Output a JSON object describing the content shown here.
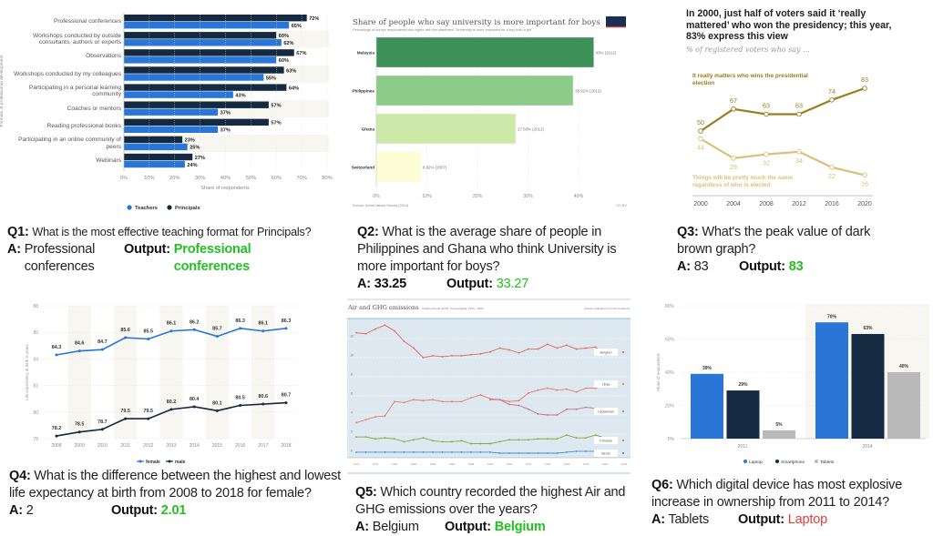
{
  "colors": {
    "statista_blue": "#2a75d8",
    "statista_dark": "#132a40",
    "grey_bar": "#b9b9b9",
    "band": "#f7f6f0",
    "owid_greens": [
      "#3f915a",
      "#8ccc8a",
      "#cde8a8",
      "#fdfdd6"
    ],
    "pew_dark": "#9c7d1e",
    "pew_light": "#dcc07a",
    "correct": "#22c022",
    "wrong": "#e23b3b"
  },
  "chart_data": [
    {
      "type": "bar",
      "orientation": "horizontal",
      "categories": [
        "Professional conferences",
        "Workshops conducted by outside consultants, authors or experts",
        "Observations",
        "Workshops conducted by my colleagues",
        "Participating in a personal learning community",
        "Coaches or mentors",
        "Reading professional books",
        "Participating in an online community of peers",
        "Webinars"
      ],
      "series": [
        {
          "name": "Principals",
          "values": [
            72,
            60,
            67,
            63,
            64,
            57,
            57,
            23,
            27
          ],
          "labels": [
            "72%",
            "60%",
            "67%",
            "63%",
            "64%",
            "57%",
            "57%",
            "23%",
            "27%"
          ]
        },
        {
          "name": "Teachers",
          "values": [
            65,
            62,
            60,
            55,
            43,
            37,
            37,
            25,
            24
          ],
          "labels": [
            "65%",
            "62%",
            "60%",
            "55%",
            "43%",
            "37%",
            "37%",
            "25%",
            "24%"
          ]
        }
      ],
      "xlabel": "Share of respondents",
      "ylabel": "Formats of professional development",
      "xlim": [
        0,
        80
      ],
      "xticks": [
        "0%",
        "10%",
        "20%",
        "30%",
        "40%",
        "50%",
        "60%",
        "70%",
        "80%"
      ],
      "legend": [
        "Teachers",
        "Principals"
      ],
      "legend_placement": "bottom"
    },
    {
      "type": "bar",
      "orientation": "horizontal",
      "title": "Share of people who say university is more important for boys",
      "subtitle": "Percentage of survey respondents who agree with the statement \"University is more important for a boy than a girl\"",
      "categories": [
        "Malaysia",
        "Philippines",
        "Ghana",
        "Switzerland"
      ],
      "values": [
        43,
        38.92,
        27.58,
        8.82
      ],
      "labels": [
        "43% (2012)",
        "38.92% (2012)",
        "27.58% (2012)",
        "8.82% (2007)"
      ],
      "xlim": [
        0,
        43
      ],
      "xticks": [
        "0%",
        "10%",
        "20%",
        "30%",
        "40%"
      ],
      "source": "Source: World Values Survey (2014)",
      "license": "CC BY",
      "logo": "Our World in Data",
      "grid": true
    },
    {
      "type": "line",
      "title": "In 2000, just half of voters said it ‘really mattered’ who won the presidency; this year, 83% express this view",
      "subtitle": "% of registered voters who say ...",
      "x": [
        "2000",
        "2004",
        "2008",
        "2012",
        "2016",
        "2020"
      ],
      "series": [
        {
          "name": "It really matters who wins the presidential election",
          "values": [
            50,
            67,
            63,
            63,
            74,
            83
          ]
        },
        {
          "name": "Things will be pretty much the same regardless of who is elected",
          "values": [
            44,
            29,
            32,
            34,
            22,
            16
          ]
        }
      ]
    },
    {
      "type": "line",
      "x": [
        "2008",
        "2009",
        "2010",
        "2011",
        "2012",
        "2013",
        "2014",
        "2015",
        "2016",
        "2017",
        "2018"
      ],
      "series": [
        {
          "name": "female",
          "values": [
            84.3,
            84.6,
            84.7,
            85.6,
            85.5,
            86.1,
            86.2,
            85.7,
            86.3,
            86.1,
            86.3
          ]
        },
        {
          "name": "male",
          "values": [
            78.2,
            78.5,
            78.7,
            79.5,
            79.5,
            80.2,
            80.4,
            80.1,
            80.5,
            80.6,
            80.7
          ]
        }
      ],
      "ylabel": "Life expectancy at birth in years",
      "ylim": [
        78,
        88
      ],
      "yticks": [
        "78",
        "80",
        "82",
        "84",
        "86",
        "88"
      ],
      "legend_placement": "bottom"
    },
    {
      "type": "line",
      "title": "Air and GHG emissions",
      "subtitle": "Carbon dioxide (CO2), Tonnes/capita, 1976 – 2004",
      "source": "Source: Indicators for CO2 emissions",
      "xticks": [
        "1976",
        "1978",
        "1980",
        "1982",
        "1984",
        "1986",
        "1988",
        "1990",
        "1992",
        "1994",
        "1996",
        "1998",
        "2000",
        "2002",
        "2004"
      ],
      "yticks": [
        "0",
        "2",
        "4",
        "6",
        "8",
        "10",
        "12"
      ],
      "ylim": [
        0,
        13.5
      ],
      "series": [
        {
          "name": "Belgium",
          "start": 1976,
          "values": [
            12.6,
            12.5,
            13.0,
            13.4,
            12.8,
            11.7,
            11.0,
            10.0,
            10.2,
            10.1,
            10.2,
            10.2,
            10.3,
            10.4,
            10.6,
            11.0,
            10.8,
            10.5,
            10.9,
            10.9,
            11.4,
            11.0,
            11.3,
            10.9,
            11.0,
            11.1,
            10.5
          ],
          "color": "#e8665a"
        },
        {
          "name": "Libya",
          "start": 1976,
          "values": [
            3.2,
            3.5,
            3.8,
            3.9,
            5.4,
            5.3,
            5.6,
            5.5,
            5.6,
            5.4,
            5.4,
            5.4,
            5.8,
            6.1,
            5.7,
            5.6,
            5.4,
            5.5,
            6.3,
            6.6,
            6.8,
            6.6,
            6.7,
            6.4,
            6.8,
            6.8,
            7.1
          ],
          "color": "#e77a62"
        },
        {
          "name": "Uzbekistan",
          "start": 1990,
          "values": [
            5.6,
            5.6,
            5.1,
            5.0,
            4.6,
            4.1,
            4.0,
            4.0,
            4.6,
            4.6,
            4.8,
            4.7
          ],
          "color": "#c9708c"
        },
        {
          "name": "Panama",
          "start": 1976,
          "values": [
            1.7,
            1.7,
            1.5,
            1.6,
            1.5,
            1.2,
            1.4,
            1.6,
            1.3,
            1.2,
            1.2,
            1.3,
            1.0,
            1.0,
            1.0,
            1.2,
            1.4,
            1.4,
            1.4,
            1.5,
            1.5,
            1.5,
            1.9,
            1.6,
            1.6,
            1.9,
            1.6
          ],
          "color": "#8aa83a"
        },
        {
          "name": "Benin",
          "start": 1976,
          "values": [
            0.1,
            0.1,
            0.1,
            0.1,
            0.1,
            0.1,
            0.1,
            0.1,
            0.1,
            0.1,
            0.1,
            0.1,
            0.1,
            0.1,
            0.1,
            0.0,
            0.0,
            0.0,
            0.0,
            0.0,
            0.0,
            0.0,
            0.1,
            0.2,
            0.2,
            0.2,
            0.3
          ],
          "color": "#3a8ee0"
        }
      ],
      "grid": true
    },
    {
      "type": "bar",
      "categories": [
        "2011",
        "2014"
      ],
      "series": [
        {
          "name": "Laptop",
          "values": [
            39,
            70
          ],
          "labels": [
            "39%",
            "70%"
          ]
        },
        {
          "name": "Smartphone",
          "values": [
            29,
            63
          ],
          "labels": [
            "29%",
            "63%"
          ]
        },
        {
          "name": "Tablets",
          "values": [
            5,
            40
          ],
          "labels": [
            "5%",
            "40%"
          ]
        }
      ],
      "ylabel": "Share of respondents",
      "ylim": [
        0,
        80
      ],
      "yticks": [
        "0%",
        "20%",
        "40%",
        "60%",
        "80%"
      ],
      "legend_placement": "bottom"
    }
  ],
  "qa": [
    {
      "id": "Q1:",
      "question": "What is the most effective teaching format for Principals?",
      "a_label": "A:",
      "answer": "Professional conferences",
      "output_label": "Output:",
      "output": "Professional conferences",
      "correct": true
    },
    {
      "id": "Q2:",
      "question": "What is the average share of people in Philippines and Ghana who think University is more important for boys?",
      "a_label": "A:",
      "answer": "33.25",
      "output_label": "Output:",
      "output": "33.27",
      "correct": true
    },
    {
      "id": "Q3:",
      "question": "What's the peak value of dark brown graph?",
      "a_label": "A:",
      "answer": "83",
      "output_label": "Output:",
      "output": "83",
      "correct": true
    },
    {
      "id": "Q4:",
      "question": "What is the difference between the highest and lowest life expectancy at birth from 2008 to 2018 for female?",
      "a_label": "A:",
      "answer": "2",
      "output_label": "Output:",
      "output": "2.01",
      "correct": true
    },
    {
      "id": "Q5:",
      "question": "Which country recorded the highest Air and GHG emissions over the years?",
      "a_label": "A:",
      "answer": "Belgium",
      "output_label": "Output:",
      "output": "Belgium",
      "correct": true
    },
    {
      "id": "Q6:",
      "question": "Which digital device has most explosive increase in ownership from 2011 to 2014?",
      "a_label": "A:",
      "answer": "Tablets",
      "output_label": "Output:",
      "output": "Laptop",
      "correct": false
    }
  ]
}
